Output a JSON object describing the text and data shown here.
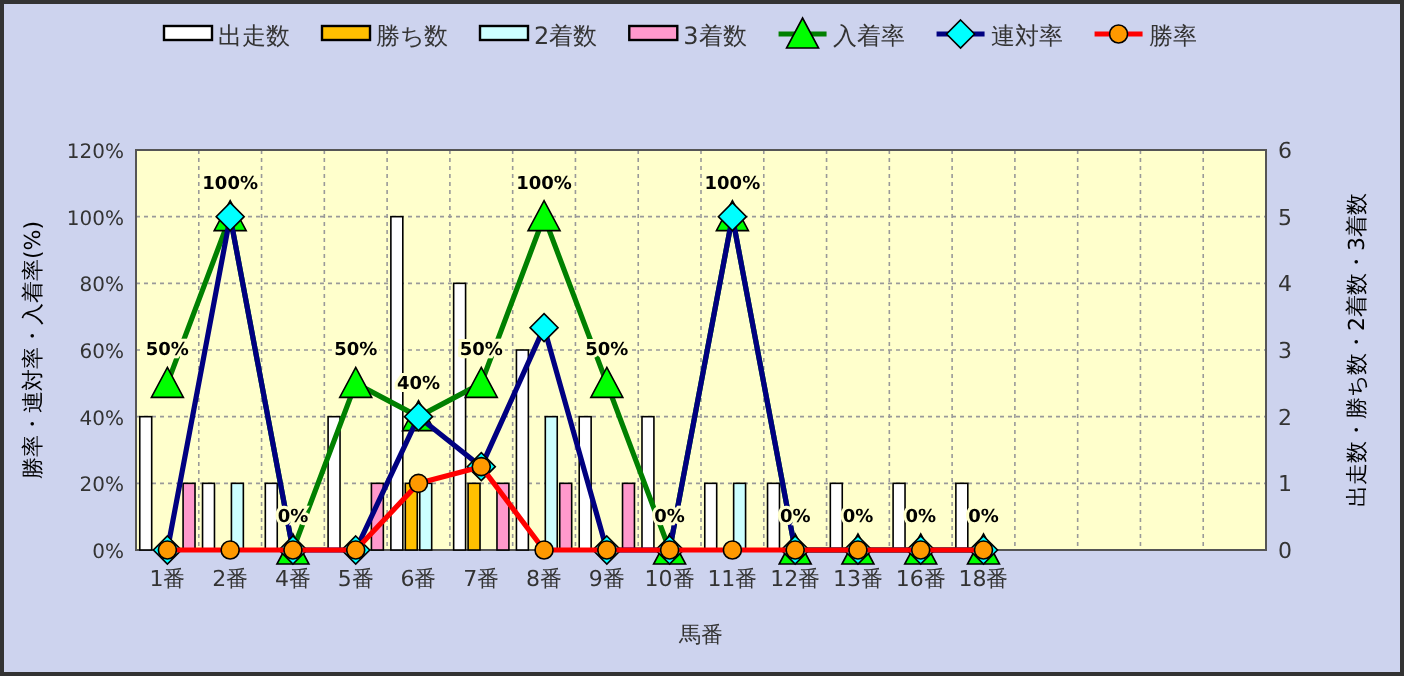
{
  "chart_data": {
    "type": "bar",
    "xlabel": "馬番",
    "ylabel": "勝率・連対率・入着率(%)",
    "y2label": "出走数・勝ち数・2着数・3着数",
    "categories": [
      "1番",
      "2番",
      "4番",
      "5番",
      "6番",
      "7番",
      "8番",
      "9番",
      "10番",
      "11番",
      "12番",
      "13番",
      "16番",
      "18番",
      null,
      null,
      null,
      null
    ],
    "ylim": [
      0,
      120
    ],
    "yticks": [
      {
        "value": 0,
        "label": "0%"
      },
      {
        "value": 20,
        "label": "20%"
      },
      {
        "value": 40,
        "label": "40%"
      },
      {
        "value": 60,
        "label": "60%"
      },
      {
        "value": 80,
        "label": "80%"
      },
      {
        "value": 100,
        "label": "100%"
      },
      {
        "value": 120,
        "label": "120%"
      }
    ],
    "y2lim": [
      0,
      6
    ],
    "y2ticks": [
      0,
      1,
      2,
      3,
      4,
      5,
      6
    ],
    "grid": true,
    "legend": "top",
    "series": [
      {
        "name": "出走数",
        "axis": "y2",
        "color": "#ffffff",
        "values": [
          2,
          1,
          1,
          2,
          5,
          4,
          3,
          2,
          2,
          1,
          1,
          1,
          1,
          1,
          null,
          null,
          null,
          null
        ]
      },
      {
        "name": "勝ち数",
        "axis": "y2",
        "color": "#ffc000",
        "values": [
          0,
          0,
          0,
          0,
          1,
          1,
          0,
          0,
          0,
          0,
          0,
          0,
          0,
          0,
          null,
          null,
          null,
          null
        ]
      },
      {
        "name": "2着数",
        "axis": "y2",
        "color": "#ccffff",
        "values": [
          0,
          1,
          0,
          0,
          1,
          0,
          2,
          0,
          0,
          1,
          0,
          0,
          0,
          0,
          null,
          null,
          null,
          null
        ]
      },
      {
        "name": "3着数",
        "axis": "y2",
        "color": "#ff99cc",
        "values": [
          1,
          0,
          0,
          1,
          0,
          1,
          1,
          1,
          0,
          0,
          0,
          0,
          0,
          0,
          null,
          null,
          null,
          null
        ]
      },
      {
        "name": "入着率",
        "type": "line",
        "color": "#008000",
        "marker": "triangle",
        "colors": [
          "#00ff00",
          "#00ff00",
          "#00ff00",
          "#00ff00",
          "#00ff00",
          "#00ff00",
          "#00ff00",
          "#00ff00",
          "#00ff00",
          "#00ff00",
          "#00ff00",
          "#00ff00",
          "#00ff00",
          "#00ff00",
          null,
          null,
          null,
          null
        ],
        "values": [
          50,
          100,
          0,
          50,
          40,
          50,
          100,
          50,
          0,
          100,
          0,
          0,
          0,
          0,
          null,
          null,
          null,
          null
        ],
        "value_labels": [
          "50%",
          "100%",
          "0%",
          "50%",
          "40%",
          "50%",
          "100%",
          "50%",
          "0%",
          "100%",
          "0%",
          "0%",
          "0%",
          "0%",
          null,
          null,
          null,
          null
        ]
      },
      {
        "name": "連対率",
        "type": "line",
        "color": "#000080",
        "marker": "diamond",
        "colors": [
          "#00ffff",
          "#00ffff",
          "#00ffff",
          "#00ffff",
          "#00ffff",
          "#00ffff",
          "#00ffff",
          "#00ffff",
          "#00ffff",
          "#00ffff",
          "#00ffff",
          "#00ffff",
          "#00ffff",
          "#00ffff",
          null,
          null,
          null,
          null
        ],
        "values": [
          0,
          100,
          0,
          0,
          40,
          25,
          66.7,
          0,
          0,
          100,
          0,
          0,
          0,
          0,
          null,
          null,
          null,
          null
        ]
      },
      {
        "name": "勝率",
        "type": "line",
        "color": "#ff0000",
        "marker": "circle",
        "colors": [
          "#ff9900",
          "#ff9900",
          "#ff9900",
          "#ff9900",
          "#ff9900",
          "#ff9900",
          "#ff9900",
          "#ff9900",
          "#ff9900",
          "#ff9900",
          "#ff9900",
          "#ff9900",
          "#ff9900",
          "#ff9900",
          null,
          null,
          null,
          null
        ],
        "values": [
          0,
          0,
          0,
          0,
          20,
          25,
          0,
          0,
          0,
          0,
          0,
          0,
          0,
          0,
          null,
          null,
          null,
          null
        ]
      }
    ]
  }
}
